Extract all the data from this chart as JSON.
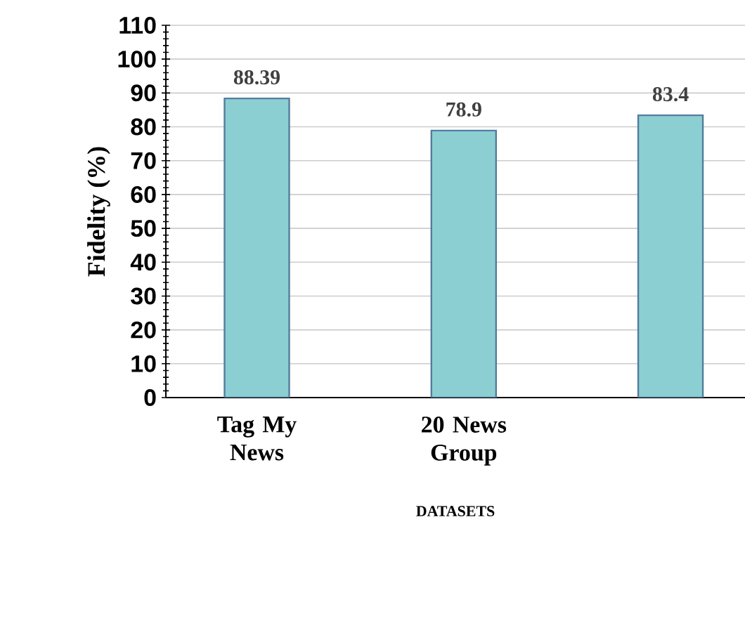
{
  "chart_data": {
    "type": "bar",
    "xlabel": "DATASETS",
    "ylabel": "Fidelity (%)",
    "categories": [
      "Tag My News",
      "20 News Group",
      null
    ],
    "values": [
      88.39,
      78.9,
      83.4
    ],
    "color": "#8ccfd2",
    "ylim": [
      0,
      110
    ],
    "yticks": [
      0,
      10,
      20,
      30,
      40,
      50,
      60,
      70,
      80,
      90,
      100,
      110
    ],
    "grid": "y",
    "data_labels": true
  }
}
